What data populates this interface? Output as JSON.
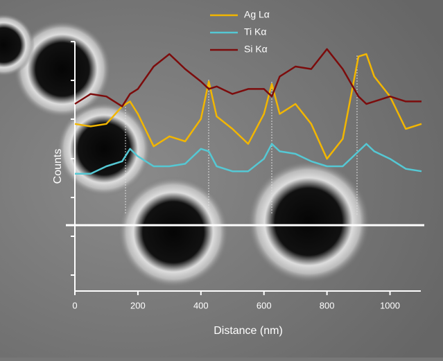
{
  "chart_data": {
    "type": "line",
    "x_label": "Distance (nm)",
    "y_label": "Counts",
    "x": [
      0,
      50,
      100,
      150,
      175,
      200,
      250,
      300,
      350,
      400,
      425,
      450,
      500,
      550,
      600,
      625,
      650,
      700,
      750,
      800,
      850,
      900,
      925,
      950,
      1000,
      1050,
      1100
    ],
    "xlim": [
      0,
      1100
    ],
    "xticks": [
      0,
      200,
      400,
      600,
      800,
      1000
    ],
    "ylim": [
      0,
      100
    ],
    "series": [
      {
        "name": "Ag Lα",
        "color": "#f2b600",
        "values": [
          67,
          66,
          67,
          74,
          76,
          71,
          58,
          62,
          60,
          69,
          84,
          70,
          65,
          59,
          71,
          83,
          71,
          75,
          67,
          53,
          61,
          94,
          95,
          86,
          78,
          65,
          67
        ]
      },
      {
        "name": "Ti Kα",
        "color": "#55c8d4",
        "values": [
          47,
          47,
          50,
          52,
          57,
          54,
          50,
          50,
          51,
          57,
          56,
          50,
          48,
          48,
          53,
          59,
          56,
          55,
          52,
          50,
          50,
          56,
          59,
          56,
          53,
          49,
          48
        ]
      },
      {
        "name": "Si Kα",
        "color": "#7c0c0c",
        "values": [
          75,
          79,
          78,
          74,
          79,
          81,
          90,
          95,
          89,
          84,
          81,
          82,
          79,
          81,
          81,
          78,
          86,
          90,
          89,
          97,
          89,
          78,
          75,
          76,
          78,
          76,
          76
        ]
      }
    ]
  }
}
